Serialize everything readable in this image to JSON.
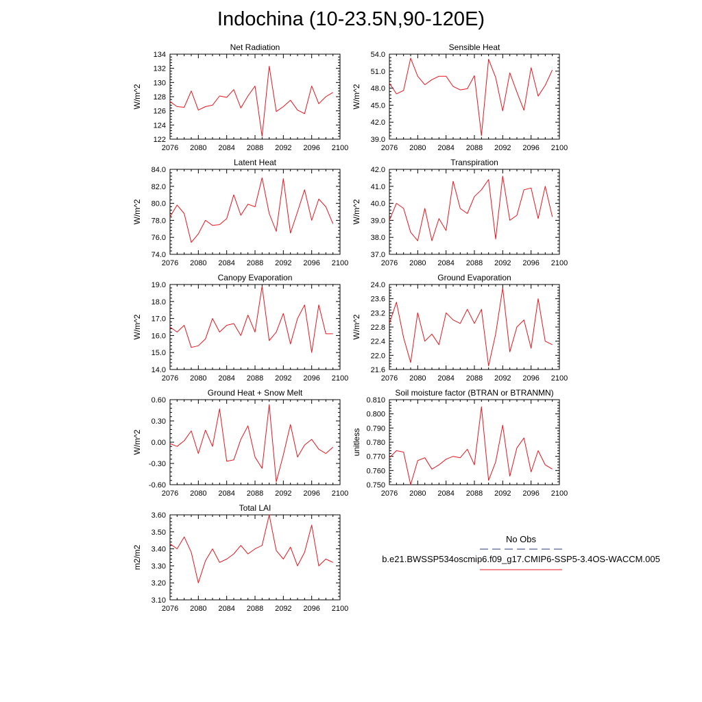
{
  "title": "Indochina (10-23.5N,90-120E)",
  "chart_data": [
    {
      "type": "line",
      "title": "Net Radiation",
      "ylabel": "W/m^2",
      "xlim": [
        2076,
        2100
      ],
      "ylim": [
        122,
        134
      ],
      "xticks": [
        "2076",
        "2080",
        "2084",
        "2088",
        "2092",
        "2096",
        "2100"
      ],
      "yticks": [
        "122",
        "124",
        "126",
        "128",
        "130",
        "132",
        "134"
      ],
      "series": [
        {
          "name": "b.e21.BWSSP534oscmip6.f09_g17.CMIP6-SSP5-3.4OS-WACCM.005",
          "color": "#e8141c",
          "x": [
            2076,
            2077,
            2078,
            2079,
            2080,
            2081,
            2082,
            2083,
            2084,
            2085,
            2086,
            2087,
            2088,
            2089,
            2090,
            2091,
            2092,
            2093,
            2094,
            2095,
            2096,
            2097,
            2098,
            2099
          ],
          "values": [
            127.3,
            126.6,
            126.5,
            128.8,
            126.1,
            126.6,
            126.8,
            128.1,
            127.9,
            129.0,
            126.4,
            128.1,
            129.5,
            122.4,
            132.3,
            125.9,
            126.6,
            127.5,
            126.1,
            125.6,
            129.5,
            127.0,
            128.0,
            128.6
          ]
        }
      ]
    },
    {
      "type": "line",
      "title": "Sensible Heat",
      "ylabel": "W/m^2",
      "xlim": [
        2076,
        2100
      ],
      "ylim": [
        39,
        54
      ],
      "xticks": [
        "2076",
        "2080",
        "2084",
        "2088",
        "2092",
        "2096",
        "2100"
      ],
      "yticks": [
        "39.0",
        "42.0",
        "45.0",
        "48.0",
        "51.0",
        "54.0"
      ],
      "series": [
        {
          "name": "b.e21.BWSSP534oscmip6.f09_g17.CMIP6-SSP5-3.4OS-WACCM.005",
          "color": "#e8141c",
          "x": [
            2076,
            2077,
            2078,
            2079,
            2080,
            2081,
            2082,
            2083,
            2084,
            2085,
            2086,
            2087,
            2088,
            2089,
            2090,
            2091,
            2092,
            2093,
            2094,
            2095,
            2096,
            2097,
            2098,
            2099
          ],
          "values": [
            48.9,
            47.0,
            47.6,
            53.3,
            50.1,
            48.6,
            49.5,
            50.1,
            50.1,
            48.3,
            47.7,
            47.9,
            50.2,
            39.6,
            53.1,
            49.9,
            44.0,
            50.7,
            47.3,
            44.1,
            51.6,
            46.6,
            48.5,
            51.2
          ]
        }
      ]
    },
    {
      "type": "line",
      "title": "Latent Heat",
      "ylabel": "W/m^2",
      "xlim": [
        2076,
        2100
      ],
      "ylim": [
        74,
        84
      ],
      "xticks": [
        "2076",
        "2080",
        "2084",
        "2088",
        "2092",
        "2096",
        "2100"
      ],
      "yticks": [
        "74.0",
        "76.0",
        "78.0",
        "80.0",
        "82.0",
        "84.0"
      ],
      "series": [
        {
          "name": "b.e21.BWSSP534oscmip6.f09_g17.CMIP6-SSP5-3.4OS-WACCM.005",
          "color": "#e8141c",
          "x": [
            2076,
            2077,
            2078,
            2079,
            2080,
            2081,
            2082,
            2083,
            2084,
            2085,
            2086,
            2087,
            2088,
            2089,
            2090,
            2091,
            2092,
            2093,
            2094,
            2095,
            2096,
            2097,
            2098,
            2099
          ],
          "values": [
            78.4,
            79.8,
            78.8,
            75.4,
            76.4,
            78.0,
            77.4,
            77.5,
            78.2,
            81.0,
            78.6,
            79.9,
            79.6,
            83.0,
            78.8,
            76.7,
            82.9,
            76.5,
            79.0,
            81.6,
            78.0,
            80.5,
            79.6,
            77.6
          ]
        }
      ]
    },
    {
      "type": "line",
      "title": "Transpiration",
      "ylabel": "W/m^2",
      "xlim": [
        2076,
        2100
      ],
      "ylim": [
        37,
        42
      ],
      "xticks": [
        "2076",
        "2080",
        "2084",
        "2088",
        "2092",
        "2096",
        "2100"
      ],
      "yticks": [
        "37.0",
        "38.0",
        "39.0",
        "40.0",
        "41.0",
        "42.0"
      ],
      "series": [
        {
          "name": "b.e21.BWSSP534oscmip6.f09_g17.CMIP6-SSP5-3.4OS-WACCM.005",
          "color": "#e8141c",
          "x": [
            2076,
            2077,
            2078,
            2079,
            2080,
            2081,
            2082,
            2083,
            2084,
            2085,
            2086,
            2087,
            2088,
            2089,
            2090,
            2091,
            2092,
            2093,
            2094,
            2095,
            2096,
            2097,
            2098,
            2099
          ],
          "values": [
            39.0,
            40.0,
            39.7,
            38.3,
            37.8,
            39.7,
            37.8,
            39.1,
            38.4,
            41.3,
            39.7,
            39.4,
            40.4,
            40.8,
            41.4,
            37.9,
            41.6,
            39.0,
            39.3,
            40.8,
            40.9,
            39.1,
            41.0,
            39.2
          ]
        }
      ]
    },
    {
      "type": "line",
      "title": "Canopy Evaporation",
      "ylabel": "W/m^2",
      "xlim": [
        2076,
        2100
      ],
      "ylim": [
        14,
        19
      ],
      "xticks": [
        "2076",
        "2080",
        "2084",
        "2088",
        "2092",
        "2096",
        "2100"
      ],
      "yticks": [
        "14.0",
        "15.0",
        "16.0",
        "17.0",
        "18.0",
        "19.0"
      ],
      "series": [
        {
          "name": "b.e21.BWSSP534oscmip6.f09_g17.CMIP6-SSP5-3.4OS-WACCM.005",
          "color": "#e8141c",
          "x": [
            2076,
            2077,
            2078,
            2079,
            2080,
            2081,
            2082,
            2083,
            2084,
            2085,
            2086,
            2087,
            2088,
            2089,
            2090,
            2091,
            2092,
            2093,
            2094,
            2095,
            2096,
            2097,
            2098,
            2099
          ],
          "values": [
            16.5,
            16.2,
            16.6,
            15.3,
            15.4,
            15.8,
            17.0,
            16.2,
            16.6,
            16.7,
            16.0,
            17.2,
            16.2,
            18.9,
            15.7,
            16.2,
            17.3,
            15.5,
            17.0,
            17.8,
            15.0,
            17.8,
            16.1,
            16.1
          ]
        }
      ]
    },
    {
      "type": "line",
      "title": "Ground Evaporation",
      "ylabel": "W/m^2",
      "xlim": [
        2076,
        2100
      ],
      "ylim": [
        21.6,
        24
      ],
      "xticks": [
        "2076",
        "2080",
        "2084",
        "2088",
        "2092",
        "2096",
        "2100"
      ],
      "yticks": [
        "21.6",
        "22.0",
        "22.4",
        "22.8",
        "23.2",
        "23.6",
        "24.0"
      ],
      "series": [
        {
          "name": "b.e21.BWSSP534oscmip6.f09_g17.CMIP6-SSP5-3.4OS-WACCM.005",
          "color": "#e8141c",
          "x": [
            2076,
            2077,
            2078,
            2079,
            2080,
            2081,
            2082,
            2083,
            2084,
            2085,
            2086,
            2087,
            2088,
            2089,
            2090,
            2091,
            2092,
            2093,
            2094,
            2095,
            2096,
            2097,
            2098,
            2099
          ],
          "values": [
            22.9,
            23.5,
            22.5,
            21.8,
            23.2,
            22.4,
            22.6,
            22.3,
            23.2,
            23.0,
            22.9,
            23.3,
            22.9,
            23.3,
            21.7,
            22.6,
            23.9,
            22.1,
            22.8,
            23.0,
            22.2,
            23.6,
            22.4,
            22.3
          ]
        }
      ]
    },
    {
      "type": "line",
      "title": "Ground Heat + Snow Melt",
      "ylabel": "W/m^2",
      "xlim": [
        2076,
        2100
      ],
      "ylim": [
        -0.6,
        0.6
      ],
      "xticks": [
        "2076",
        "2080",
        "2084",
        "2088",
        "2092",
        "2096",
        "2100"
      ],
      "yticks": [
        "-0.60",
        "-0.30",
        "0.00",
        "0.30",
        "0.60"
      ],
      "series": [
        {
          "name": "b.e21.BWSSP534oscmip6.f09_g17.CMIP6-SSP5-3.4OS-WACCM.005",
          "color": "#e8141c",
          "x": [
            2076,
            2077,
            2078,
            2079,
            2080,
            2081,
            2082,
            2083,
            2084,
            2085,
            2086,
            2087,
            2088,
            2089,
            2090,
            2091,
            2092,
            2093,
            2094,
            2095,
            2096,
            2097,
            2098,
            2099
          ],
          "values": [
            -0.02,
            -0.06,
            0.02,
            0.16,
            -0.16,
            0.17,
            -0.06,
            0.47,
            -0.27,
            -0.25,
            0.04,
            0.23,
            -0.21,
            -0.37,
            0.53,
            -0.56,
            -0.18,
            0.25,
            -0.21,
            -0.04,
            0.04,
            -0.1,
            -0.16,
            -0.07
          ]
        }
      ]
    },
    {
      "type": "line",
      "title": "Soil moisture factor (BTRAN or BTRANMN)",
      "ylabel": "unitless",
      "xlim": [
        2076,
        2100
      ],
      "ylim": [
        0.75,
        0.81
      ],
      "xticks": [
        "2076",
        "2080",
        "2084",
        "2088",
        "2092",
        "2096",
        "2100"
      ],
      "yticks": [
        "0.750",
        "0.760",
        "0.770",
        "0.780",
        "0.790",
        "0.800",
        "0.810"
      ],
      "series": [
        {
          "name": "b.e21.BWSSP534oscmip6.f09_g17.CMIP6-SSP5-3.4OS-WACCM.005",
          "color": "#e8141c",
          "x": [
            2076,
            2077,
            2078,
            2079,
            2080,
            2081,
            2082,
            2083,
            2084,
            2085,
            2086,
            2087,
            2088,
            2089,
            2090,
            2091,
            2092,
            2093,
            2094,
            2095,
            2096,
            2097,
            2098,
            2099
          ],
          "values": [
            0.769,
            0.774,
            0.773,
            0.75,
            0.767,
            0.769,
            0.761,
            0.764,
            0.768,
            0.77,
            0.769,
            0.775,
            0.764,
            0.805,
            0.753,
            0.766,
            0.792,
            0.756,
            0.776,
            0.783,
            0.759,
            0.774,
            0.764,
            0.761
          ]
        }
      ]
    },
    {
      "type": "line",
      "title": "Total LAI",
      "ylabel": "m2/m2",
      "xlim": [
        2076,
        2100
      ],
      "ylim": [
        3.1,
        3.6
      ],
      "xticks": [
        "2076",
        "2080",
        "2084",
        "2088",
        "2092",
        "2096",
        "2100"
      ],
      "yticks": [
        "3.10",
        "3.20",
        "3.30",
        "3.40",
        "3.50",
        "3.60"
      ],
      "series": [
        {
          "name": "b.e21.BWSSP534oscmip6.f09_g17.CMIP6-SSP5-3.4OS-WACCM.005",
          "color": "#e8141c",
          "x": [
            2076,
            2077,
            2078,
            2079,
            2080,
            2081,
            2082,
            2083,
            2084,
            2085,
            2086,
            2087,
            2088,
            2089,
            2090,
            2091,
            2092,
            2093,
            2094,
            2095,
            2096,
            2097,
            2098,
            2099
          ],
          "values": [
            3.43,
            3.4,
            3.47,
            3.38,
            3.2,
            3.33,
            3.4,
            3.32,
            3.34,
            3.37,
            3.42,
            3.37,
            3.4,
            3.42,
            3.6,
            3.39,
            3.34,
            3.41,
            3.3,
            3.38,
            3.54,
            3.3,
            3.34,
            3.32
          ]
        }
      ]
    }
  ],
  "legend": {
    "entries": [
      {
        "label": "No Obs",
        "color": "#2a3a7a",
        "style": "dashed"
      },
      {
        "label": "b.e21.BWSSP534oscmip6.f09_g17.CMIP6-SSP5-3.4OS-WACCM.005",
        "color": "#e8141c",
        "style": "solid"
      }
    ]
  }
}
